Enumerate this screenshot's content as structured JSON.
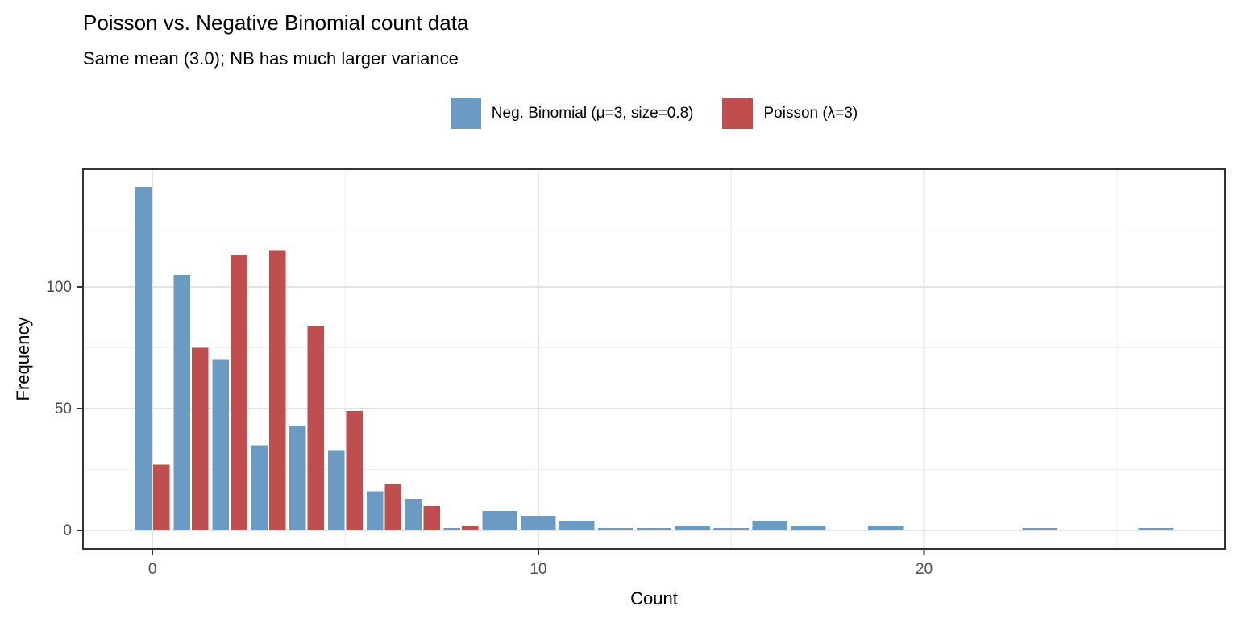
{
  "title": "Poisson vs. Negative Binomial count data",
  "subtitle": "Same mean (3.0); NB has much larger variance",
  "colors": {
    "neg_binomial": "#6B9BC3",
    "poisson": "#C14E4E",
    "grid_major": "#E3E3E3",
    "grid_minor": "#F0F0F0",
    "panel_border": "#333333",
    "tick_label": "#4D4D4D",
    "axis_title": "#000000"
  },
  "chart_data": {
    "type": "bar",
    "mode": "grouped-dodge",
    "title": "Poisson vs. Negative Binomial count data",
    "subtitle": "Same mean (3.0); NB has much larger variance",
    "xlabel": "Count",
    "ylabel": "Frequency",
    "legend_position": "top",
    "grid": true,
    "categories": [
      0,
      1,
      2,
      3,
      4,
      5,
      6,
      7,
      8,
      9,
      10,
      11,
      12,
      13,
      14,
      15,
      16,
      17,
      18,
      19,
      20,
      21,
      22,
      23,
      24,
      25,
      26
    ],
    "series": [
      {
        "name": "Neg. Binomial (μ=3, size=0.8)",
        "color": "#6B9BC3",
        "values": [
          141,
          105,
          70,
          35,
          43,
          33,
          16,
          13,
          1,
          8,
          6,
          4,
          1,
          1,
          2,
          1,
          4,
          2,
          0,
          2,
          0,
          0,
          0,
          1,
          0,
          0,
          1
        ]
      },
      {
        "name": "Poisson (λ=3)",
        "color": "#C14E4E",
        "values": [
          27,
          75,
          113,
          115,
          84,
          49,
          19,
          10,
          2,
          0,
          0,
          0,
          0,
          0,
          0,
          0,
          0,
          0,
          0,
          0,
          0,
          0,
          0,
          0,
          0,
          0,
          0
        ]
      }
    ],
    "x_major_ticks": [
      0,
      10,
      20
    ],
    "x_minor_ticks": [
      5,
      15,
      25
    ],
    "y_major_ticks": [
      0,
      50,
      100
    ],
    "y_minor_ticks": [
      25,
      75,
      125
    ],
    "xlim": [
      -1.8,
      27.8
    ],
    "ylim": [
      -7.6,
      148.3
    ]
  }
}
